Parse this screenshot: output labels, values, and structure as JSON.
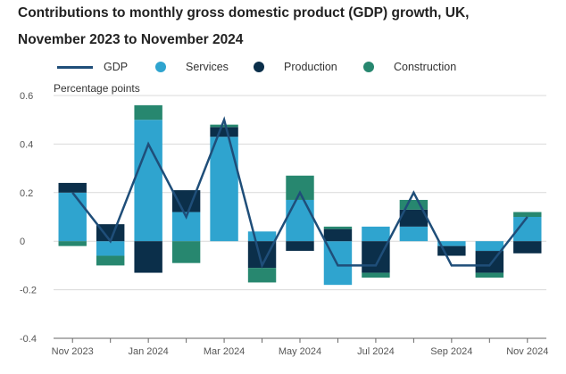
{
  "title_line1": "Contributions to monthly gross domestic product (GDP) growth, UK,",
  "title_line2": "November 2023 to November 2024",
  "colors": {
    "gdp": "#1f4e79",
    "services": "#2fa4cf",
    "production": "#0b2f4a",
    "construction": "#27876f",
    "grid": "#d9d9d9",
    "axis": "#666666"
  },
  "chart_data": {
    "type": "bar",
    "subtype": "stacked-bar-with-line",
    "ylabel": "Percentage points",
    "ylim": [
      -0.4,
      0.6
    ],
    "yticks": [
      -0.4,
      -0.2,
      0,
      0.2,
      0.4,
      0.6
    ],
    "ytick_labels": [
      "-0.4",
      "-0.2",
      "0",
      "0.2",
      "0.4",
      "0.6"
    ],
    "categories": [
      "Nov 2023",
      "Dec 2023",
      "Jan 2024",
      "Feb 2024",
      "Mar 2024",
      "Apr 2024",
      "May 2024",
      "Jun 2024",
      "Jul 2024",
      "Aug 2024",
      "Sep 2024",
      "Oct 2024",
      "Nov 2024"
    ],
    "xtick_labels": [
      "Nov 2023",
      "",
      "Jan 2024",
      "",
      "Mar 2024",
      "",
      "May 2024",
      "",
      "Jul 2024",
      "",
      "Sep 2024",
      "",
      "Nov 2024"
    ],
    "legend_position": "top",
    "grid": "horizontal",
    "series": [
      {
        "name": "Services",
        "type": "bar",
        "values": [
          0.2,
          -0.06,
          0.5,
          0.12,
          0.43,
          0.04,
          0.17,
          -0.18,
          0.06,
          0.06,
          -0.02,
          -0.04,
          0.1
        ]
      },
      {
        "name": "Production",
        "type": "bar",
        "values": [
          0.04,
          0.07,
          -0.13,
          0.09,
          0.04,
          -0.11,
          -0.04,
          0.05,
          -0.13,
          0.07,
          -0.04,
          -0.09,
          -0.05
        ]
      },
      {
        "name": "Construction",
        "type": "bar",
        "values": [
          -0.02,
          -0.04,
          0.06,
          -0.09,
          0.01,
          -0.06,
          0.1,
          0.01,
          -0.02,
          0.04,
          0.0,
          -0.02,
          0.02
        ]
      },
      {
        "name": "GDP",
        "type": "line",
        "values": [
          0.2,
          0.0,
          0.4,
          0.1,
          0.5,
          -0.1,
          0.2,
          -0.1,
          -0.1,
          0.2,
          -0.1,
          -0.1,
          0.1
        ]
      }
    ]
  },
  "legend": [
    {
      "label": "GDP",
      "kind": "line"
    },
    {
      "label": "Services",
      "kind": "dot"
    },
    {
      "label": "Production",
      "kind": "dot"
    },
    {
      "label": "Construction",
      "kind": "dot"
    }
  ]
}
